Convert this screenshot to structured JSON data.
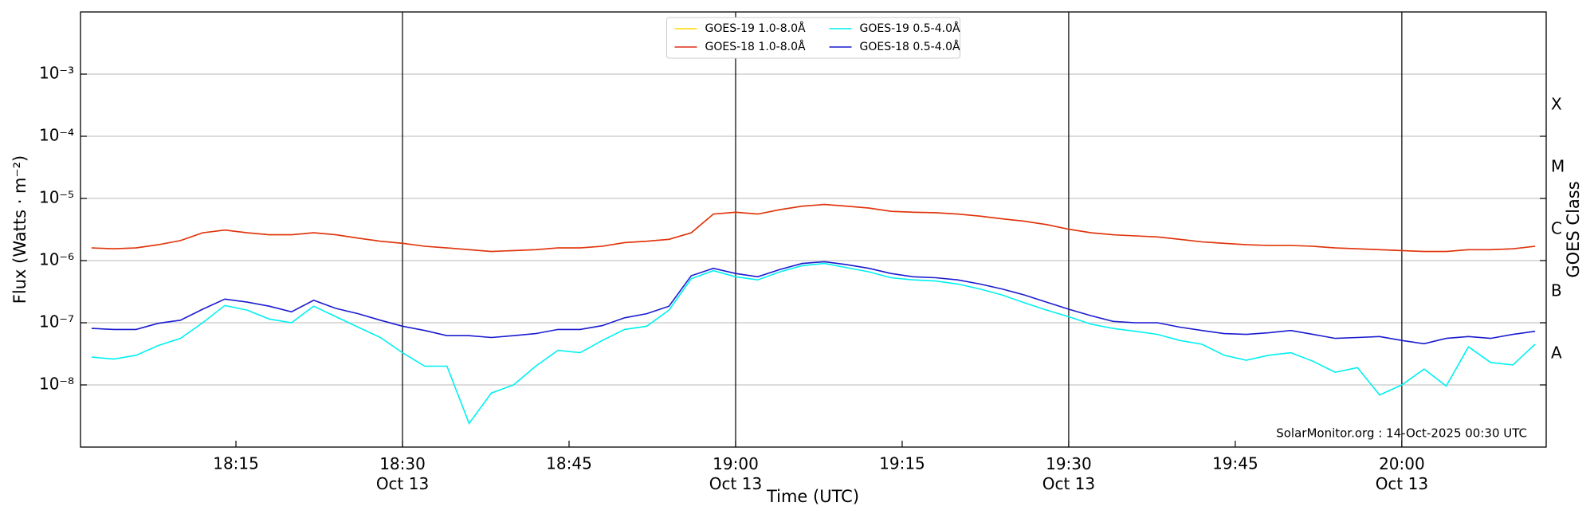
{
  "chart_data": {
    "type": "line",
    "xlabel": "Time (UTC)",
    "ylabel": "Flux (Watts · m⁻²)",
    "y2label": "GOES Class",
    "annotation": "SolarMonitor.org : 14-Oct-2025 00:30 UTC",
    "log_y": true,
    "grid": true,
    "legend": "upper center",
    "xlim": [
      "18:01",
      "20:13"
    ],
    "xticks": [
      "18:15",
      {
        "value": "18:30",
        "label": [
          "18:30",
          "Oct 13"
        ]
      },
      "18:45",
      {
        "value": "19:00",
        "label": [
          "19:00",
          "Oct 13"
        ]
      },
      "19:15",
      {
        "value": "19:30",
        "label": [
          "19:30",
          "Oct 13"
        ]
      },
      "19:45",
      {
        "value": "20:00",
        "label": [
          "20:00",
          "Oct 13"
        ]
      }
    ],
    "ylim": [
      1e-09,
      0.01
    ],
    "yticks": [
      {
        "value": 1e-08,
        "label": "10⁻⁸"
      },
      {
        "value": 1e-07,
        "label": "10⁻⁷"
      },
      {
        "value": 1e-06,
        "label": "10⁻⁶"
      },
      {
        "value": 1e-05,
        "label": "10⁻⁵"
      },
      {
        "value": 0.0001,
        "label": "10⁻⁴"
      },
      {
        "value": 0.001,
        "label": "10⁻³"
      }
    ],
    "y2ticks": [
      {
        "value": 1e-08,
        "label": "A"
      },
      {
        "value": 1e-07,
        "label": "B"
      },
      {
        "value": 1e-06,
        "label": "C"
      },
      {
        "value": 1e-05,
        "label": "M"
      },
      {
        "value": 0.0001,
        "label": "X"
      }
    ],
    "x": [
      "18:02",
      "18:04",
      "18:06",
      "18:08",
      "18:10",
      "18:12",
      "18:14",
      "18:16",
      "18:18",
      "18:20",
      "18:22",
      "18:24",
      "18:26",
      "18:28",
      "18:30",
      "18:32",
      "18:34",
      "18:36",
      "18:38",
      "18:40",
      "18:42",
      "18:44",
      "18:46",
      "18:48",
      "18:50",
      "18:52",
      "18:54",
      "18:56",
      "18:58",
      "19:00",
      "19:02",
      "19:04",
      "19:06",
      "19:08",
      "19:10",
      "19:12",
      "19:14",
      "19:16",
      "19:18",
      "19:20",
      "19:22",
      "19:24",
      "19:26",
      "19:28",
      "19:30",
      "19:32",
      "19:34",
      "19:36",
      "19:38",
      "19:40",
      "19:42",
      "19:44",
      "19:46",
      "19:48",
      "19:50",
      "19:52",
      "19:54",
      "19:56",
      "19:58",
      "20:00",
      "20:02",
      "20:04",
      "20:06",
      "20:08",
      "20:10",
      "20:12"
    ],
    "series": [
      {
        "name": "GOES-19 1.0-8.0Å",
        "color": "#ffd700",
        "values": [
          1.6e-06,
          1.55e-06,
          1.6e-06,
          1.8e-06,
          2.1e-06,
          2.8e-06,
          3.1e-06,
          2.8e-06,
          2.6e-06,
          2.6e-06,
          2.8e-06,
          2.6e-06,
          2.3e-06,
          2.05e-06,
          1.9e-06,
          1.7e-06,
          1.6e-06,
          1.5e-06,
          1.4e-06,
          1.45e-06,
          1.5e-06,
          1.6e-06,
          1.6e-06,
          1.7e-06,
          1.95e-06,
          2.05e-06,
          2.2e-06,
          2.8e-06,
          5.6e-06,
          6e-06,
          5.6e-06,
          6.6e-06,
          7.5e-06,
          8e-06,
          7.5e-06,
          7e-06,
          6.2e-06,
          6e-06,
          5.9e-06,
          5.6e-06,
          5.2e-06,
          4.7e-06,
          4.3e-06,
          3.8e-06,
          3.2e-06,
          2.8e-06,
          2.6e-06,
          2.5e-06,
          2.4e-06,
          2.2e-06,
          2e-06,
          1.9e-06,
          1.8e-06,
          1.75e-06,
          1.75e-06,
          1.7e-06,
          1.6e-06,
          1.55e-06,
          1.5e-06,
          1.45e-06,
          1.4e-06,
          1.4e-06,
          1.5e-06,
          1.5e-06,
          1.55e-06,
          1.7e-06
        ]
      },
      {
        "name": "GOES-18 1.0-8.0Å",
        "color": "#e0301a",
        "values": [
          1.6e-06,
          1.55e-06,
          1.6e-06,
          1.8e-06,
          2.1e-06,
          2.8e-06,
          3.1e-06,
          2.8e-06,
          2.6e-06,
          2.6e-06,
          2.8e-06,
          2.6e-06,
          2.3e-06,
          2.05e-06,
          1.9e-06,
          1.7e-06,
          1.6e-06,
          1.5e-06,
          1.4e-06,
          1.45e-06,
          1.5e-06,
          1.6e-06,
          1.6e-06,
          1.7e-06,
          1.95e-06,
          2.05e-06,
          2.2e-06,
          2.8e-06,
          5.6e-06,
          6e-06,
          5.6e-06,
          6.6e-06,
          7.5e-06,
          8e-06,
          7.5e-06,
          7e-06,
          6.2e-06,
          6e-06,
          5.9e-06,
          5.6e-06,
          5.2e-06,
          4.7e-06,
          4.3e-06,
          3.8e-06,
          3.2e-06,
          2.8e-06,
          2.6e-06,
          2.5e-06,
          2.4e-06,
          2.2e-06,
          2e-06,
          1.9e-06,
          1.8e-06,
          1.75e-06,
          1.75e-06,
          1.7e-06,
          1.6e-06,
          1.55e-06,
          1.5e-06,
          1.45e-06,
          1.4e-06,
          1.4e-06,
          1.5e-06,
          1.5e-06,
          1.55e-06,
          1.7e-06
        ]
      },
      {
        "name": "GOES-19 0.5-4.0Å",
        "color": "#00f0f0",
        "values": [
          2.8e-08,
          2.6e-08,
          3e-08,
          4.3e-08,
          5.6e-08,
          1e-07,
          1.9e-07,
          1.6e-07,
          1.15e-07,
          1e-07,
          1.85e-07,
          1.25e-07,
          8.5e-08,
          5.8e-08,
          3.3e-08,
          2e-08,
          2e-08,
          2.4e-09,
          7.4e-09,
          1e-08,
          2e-08,
          3.6e-08,
          3.3e-08,
          5.2e-08,
          7.8e-08,
          8.8e-08,
          1.6e-07,
          5.1e-07,
          6.9e-07,
          5.5e-07,
          4.9e-07,
          6.6e-07,
          8.3e-07,
          9e-07,
          7.7e-07,
          6.6e-07,
          5.3e-07,
          4.9e-07,
          4.7e-07,
          4.2e-07,
          3.5e-07,
          2.8e-07,
          2.1e-07,
          1.6e-07,
          1.25e-07,
          9.5e-08,
          8.1e-08,
          7.3e-08,
          6.5e-08,
          5.2e-08,
          4.5e-08,
          3e-08,
          2.5e-08,
          3e-08,
          3.3e-08,
          2.4e-08,
          1.6e-08,
          1.9e-08,
          6.9e-09,
          1e-08,
          1.8e-08,
          9.6e-09,
          4.1e-08,
          2.3e-08,
          2.1e-08,
          4.5e-08
        ]
      },
      {
        "name": "GOES-18 0.5-4.0Å",
        "color": "#1a1ad0",
        "values": [
          8.1e-08,
          7.8e-08,
          7.8e-08,
          9.8e-08,
          1.1e-07,
          1.65e-07,
          2.4e-07,
          2.15e-07,
          1.85e-07,
          1.5e-07,
          2.3e-07,
          1.7e-07,
          1.4e-07,
          1.1e-07,
          8.8e-08,
          7.5e-08,
          6.2e-08,
          6.2e-08,
          5.8e-08,
          6.2e-08,
          6.7e-08,
          7.8e-08,
          7.8e-08,
          9e-08,
          1.2e-07,
          1.4e-07,
          1.85e-07,
          5.7e-07,
          7.5e-07,
          6.2e-07,
          5.5e-07,
          7.2e-07,
          9e-07,
          9.6e-07,
          8.6e-07,
          7.5e-07,
          6.2e-07,
          5.5e-07,
          5.3e-07,
          4.9e-07,
          4.2e-07,
          3.5e-07,
          2.8e-07,
          2.15e-07,
          1.65e-07,
          1.3e-07,
          1.05e-07,
          1e-07,
          1e-07,
          8.5e-08,
          7.5e-08,
          6.7e-08,
          6.5e-08,
          6.9e-08,
          7.5e-08,
          6.5e-08,
          5.6e-08,
          5.8e-08,
          6e-08,
          5.2e-08,
          4.6e-08,
          5.6e-08,
          6e-08,
          5.6e-08,
          6.5e-08,
          7.3e-08
        ]
      }
    ]
  }
}
